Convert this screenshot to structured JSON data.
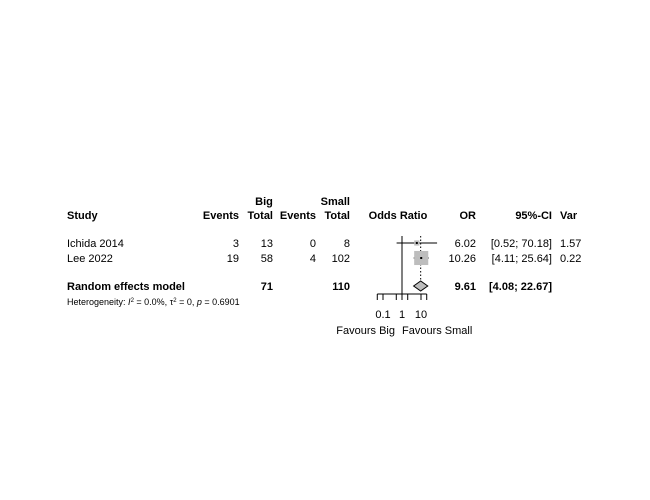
{
  "chart_data": {
    "type": "forest",
    "measure": "Odds Ratio",
    "columns": {
      "study": "Study",
      "group1": "Big",
      "group2": "Small",
      "events": "Events",
      "total": "Total",
      "plot": "Odds Ratio",
      "effect": "OR",
      "ci": "95%-CI",
      "var": "Var"
    },
    "studies": [
      {
        "name": "Ichida 2014",
        "events1": "3",
        "total1": "13",
        "events2": "0",
        "total2": "8",
        "or": 6.02,
        "lower": 0.52,
        "upper": 70.18,
        "or_text": "6.02",
        "ci_text": "[0.52; 70.18]",
        "var": "1.57",
        "weight": 0.12
      },
      {
        "name": "Lee 2022",
        "events1": "19",
        "total1": "58",
        "events2": "4",
        "total2": "102",
        "or": 10.26,
        "lower": 4.11,
        "upper": 25.64,
        "or_text": "10.26",
        "ci_text": "[4.11; 25.64]",
        "var": "0.22",
        "weight": 0.88
      }
    ],
    "pooled": {
      "label": "Random effects model",
      "total1": "71",
      "total2": "110",
      "or": 9.61,
      "lower": 4.08,
      "upper": 22.67,
      "or_text": "9.61",
      "ci_text": "[4.08; 22.67]"
    },
    "heterogeneity": {
      "prefix": "Heterogeneity: ",
      "i2": "I",
      "i2_value": " = 0.0%, ",
      "tau": "τ",
      "tau_value": " = 0, ",
      "p": "p",
      "p_value": " = 0.6901"
    },
    "x_axis": {
      "scale": "log",
      "ticks": [
        0.1,
        1,
        10
      ],
      "tick_labels": [
        "0.1",
        "1",
        "10"
      ],
      "minor_ticks": [
        0.5,
        2
      ]
    },
    "favours_left": "Favours Big",
    "favours_right": "Favours Small"
  }
}
